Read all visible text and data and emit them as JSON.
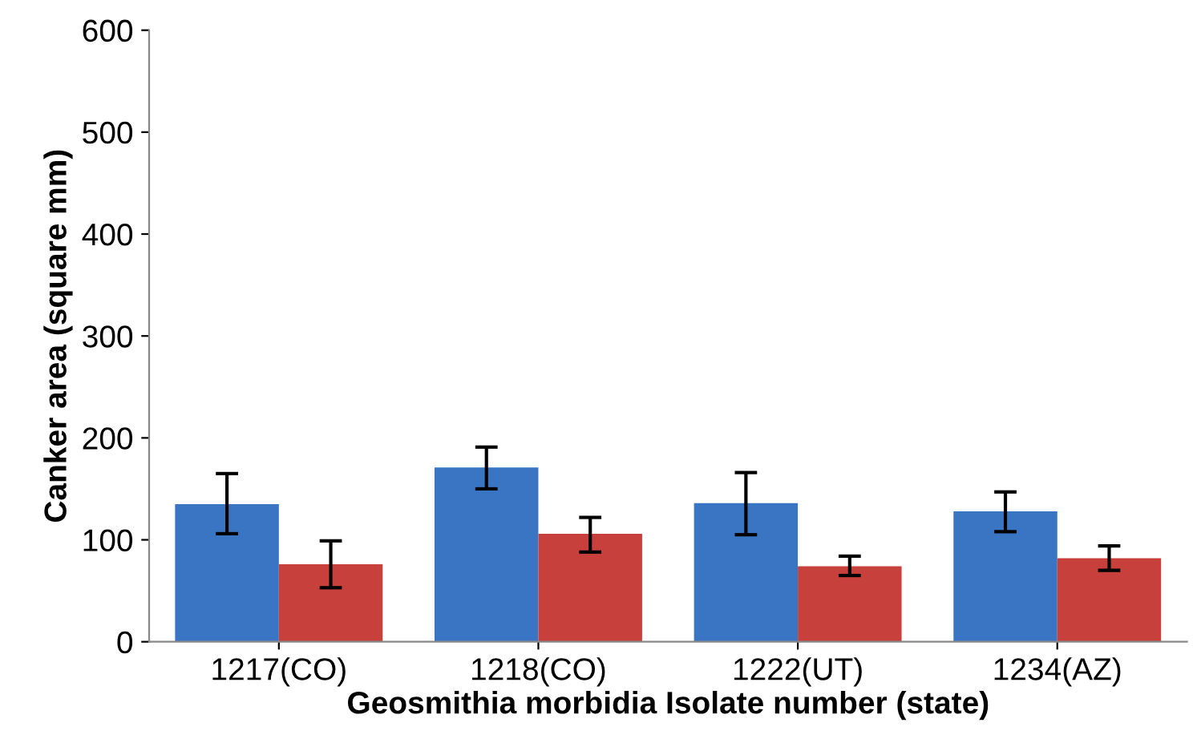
{
  "chart_data": {
    "type": "bar",
    "xlabel": "Geosmithia morbidia Isolate number (state)",
    "ylabel": "Canker area (square mm)",
    "categories": [
      "1217(CO)",
      "1218(CO)",
      "1222(UT)",
      "1234(AZ)"
    ],
    "series": [
      {
        "color": "#3a75c4",
        "values": [
          135,
          171,
          136,
          128
        ],
        "errors": [
          [
            106,
            165
          ],
          [
            150,
            191
          ],
          [
            105,
            166
          ],
          [
            108,
            147
          ]
        ]
      },
      {
        "color": "#c8403b",
        "values": [
          76,
          106,
          74,
          82
        ],
        "errors": [
          [
            53,
            99
          ],
          [
            88,
            122
          ],
          [
            65,
            84
          ],
          [
            70,
            94
          ]
        ]
      }
    ],
    "ylim": [
      0,
      600
    ],
    "yticks": [
      0,
      100,
      200,
      300,
      400,
      500,
      600
    ],
    "grid": false,
    "legend": false
  }
}
